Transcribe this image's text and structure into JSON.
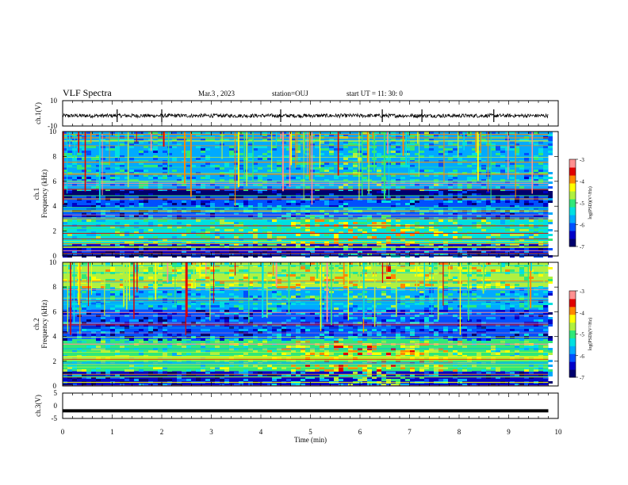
{
  "header": {
    "title": "VLF Spectra",
    "date": "Mar.3 , 2023",
    "station": "station=OUJ",
    "start": "start UT = 11: 30: 0"
  },
  "colors": {
    "spectrogram_palette": [
      "#00006e",
      "#0000c8",
      "#0050ff",
      "#00aaff",
      "#00e0e0",
      "#30e878",
      "#b0f040",
      "#ffff00",
      "#ff8800",
      "#e00000",
      "#ff9090"
    ],
    "waveform": "#000000"
  },
  "chart_data": [
    {
      "type": "line",
      "name": "ch1-waveform",
      "ylabel": "ch.1(V)",
      "ylim": [
        -10,
        10
      ],
      "yticks": [
        "10",
        "-10"
      ],
      "xlim": [
        0,
        10
      ],
      "description_level_V": 0,
      "noise_amplitude_V": 1.5,
      "spike_times_min": [
        1.1,
        2.0,
        4.4,
        6.45,
        7.25,
        8.7
      ]
    },
    {
      "type": "heatmap",
      "name": "ch1-spectrogram",
      "ylabel": "ch.1 Frequency (kHz)",
      "ylim": [
        0,
        10
      ],
      "yticks": [
        "0",
        "2",
        "4",
        "6",
        "8",
        "10"
      ],
      "xlim": [
        0,
        10
      ],
      "data_extent_min": 9.8,
      "colorbar": {
        "label": "log(PSD)(V²/Hz)",
        "range": [
          -7,
          -3
        ],
        "ticks": [
          "-3",
          "-4",
          "-5",
          "-6",
          "-7"
        ]
      },
      "bands_kHz": [
        {
          "from": 0,
          "to": 1,
          "level": -6.5
        },
        {
          "from": 1,
          "to": 3,
          "level": -5.2
        },
        {
          "from": 3,
          "to": 4.8,
          "level": -6.2
        },
        {
          "from": 4.8,
          "to": 5.4,
          "level": -6.9
        },
        {
          "from": 5.4,
          "to": 10,
          "level": -5.6
        }
      ]
    },
    {
      "type": "heatmap",
      "name": "ch2-spectrogram",
      "ylabel": "ch.2 Frequency (kHz)",
      "ylim": [
        0,
        10
      ],
      "yticks": [
        "0",
        "2",
        "4",
        "6",
        "8",
        "10"
      ],
      "xlim": [
        0,
        10
      ],
      "data_extent_min": 9.8,
      "colorbar": {
        "label": "log(PSD)(V²/Hz)",
        "range": [
          -7,
          -3
        ],
        "ticks": [
          "-3",
          "-4",
          "-5",
          "-6",
          "-7"
        ]
      },
      "bands_kHz": [
        {
          "from": 0,
          "to": 1.2,
          "level": -6.4
        },
        {
          "from": 1.2,
          "to": 3.8,
          "level": -5.1
        },
        {
          "from": 3.8,
          "to": 6.2,
          "level": -6.2
        },
        {
          "from": 6.2,
          "to": 8,
          "level": -5.6
        },
        {
          "from": 8,
          "to": 10,
          "level": -4.7
        }
      ]
    },
    {
      "type": "line",
      "name": "ch3-waveform",
      "ylabel": "ch.3(V)",
      "ylim": [
        -5,
        5
      ],
      "yticks": [
        "5",
        "0",
        "-5"
      ],
      "xlim": [
        0,
        10
      ],
      "level_V": -2,
      "xlabel": "Time (min)",
      "xticks": [
        "0",
        "1",
        "2",
        "3",
        "4",
        "5",
        "6",
        "7",
        "8",
        "9",
        "10"
      ]
    }
  ]
}
